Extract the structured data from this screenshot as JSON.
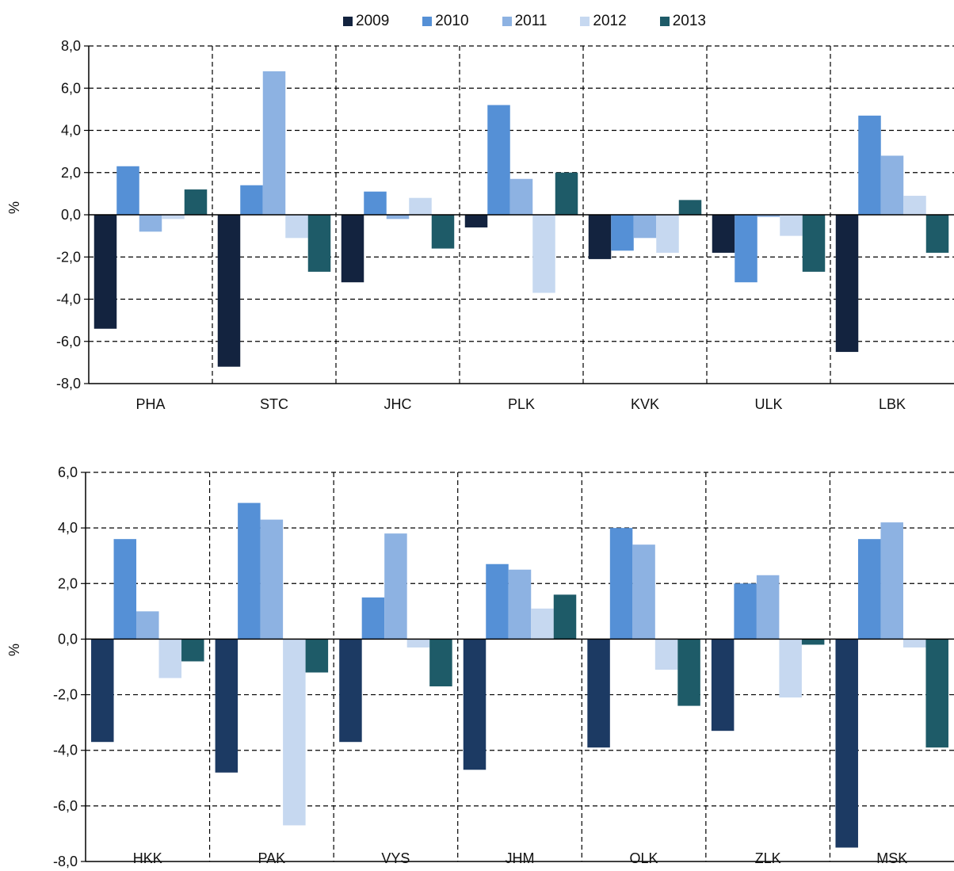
{
  "legend": [
    {
      "label": "2009",
      "color": "#13233f"
    },
    {
      "label": "2010",
      "color": "#5590d6"
    },
    {
      "label": "2011",
      "color": "#8db2e2"
    },
    {
      "label": "2012",
      "color": "#c6d8f0"
    },
    {
      "label": "2013",
      "color": "#1e5b68"
    }
  ],
  "chart_data": [
    {
      "type": "bar",
      "ylabel": "%",
      "ylim": [
        -8,
        8
      ],
      "yticks": [
        "8,0",
        "6,0",
        "4,0",
        "2,0",
        "0,0",
        "-2,0",
        "-4,0",
        "-6,0",
        "-8,0"
      ],
      "tick_values": [
        8,
        6,
        4,
        2,
        0,
        -2,
        -4,
        -6,
        -8
      ],
      "categories": [
        "PHA",
        "STC",
        "JHC",
        "PLK",
        "KVK",
        "ULK",
        "LBK"
      ],
      "series": [
        {
          "name": "2009",
          "color": "#13233f",
          "values": [
            -5.4,
            -7.2,
            -3.2,
            -0.6,
            -2.1,
            -1.8,
            -6.5
          ]
        },
        {
          "name": "2010",
          "color": "#5590d6",
          "values": [
            2.3,
            1.4,
            1.1,
            5.2,
            -1.7,
            -3.2,
            4.7
          ]
        },
        {
          "name": "2011",
          "color": "#8db2e2",
          "values": [
            -0.8,
            6.8,
            -0.2,
            1.7,
            -1.1,
            -0.1,
            2.8
          ]
        },
        {
          "name": "2012",
          "color": "#c6d8f0",
          "values": [
            -0.2,
            -1.1,
            0.8,
            -3.7,
            -1.8,
            -1.0,
            0.9
          ]
        },
        {
          "name": "2013",
          "color": "#1e5b68",
          "values": [
            1.2,
            -2.7,
            -1.6,
            2.0,
            0.7,
            -2.7,
            -1.8
          ]
        }
      ],
      "grid": true
    },
    {
      "type": "bar",
      "ylabel": "%",
      "ylim": [
        -8,
        6
      ],
      "yticks": [
        "6,0",
        "4,0",
        "2,0",
        "0,0",
        "-2,0",
        "-4,0",
        "-6,0",
        "-8,0"
      ],
      "tick_values": [
        6,
        4,
        2,
        0,
        -2,
        -4,
        -6,
        -8
      ],
      "categories": [
        "HKK",
        "PAK",
        "VYS",
        "JHM",
        "OLK",
        "ZLK",
        "MSK"
      ],
      "series": [
        {
          "name": "2009",
          "color": "#1c3a63",
          "values": [
            -3.7,
            -4.8,
            -3.7,
            -4.7,
            -3.9,
            -3.3,
            -7.5
          ]
        },
        {
          "name": "2010",
          "color": "#5590d6",
          "values": [
            3.6,
            4.9,
            1.5,
            2.7,
            4.0,
            2.0,
            3.6
          ]
        },
        {
          "name": "2011",
          "color": "#8db2e2",
          "values": [
            1.0,
            4.3,
            3.8,
            2.5,
            3.4,
            2.3,
            4.2
          ]
        },
        {
          "name": "2012",
          "color": "#c6d8f0",
          "values": [
            -1.4,
            -6.7,
            -0.3,
            1.1,
            -1.1,
            -2.1,
            -0.3
          ]
        },
        {
          "name": "2013",
          "color": "#1e5b68",
          "values": [
            -0.8,
            -1.2,
            -1.7,
            1.6,
            -2.4,
            -0.2,
            -3.9
          ]
        }
      ],
      "grid": true
    }
  ]
}
